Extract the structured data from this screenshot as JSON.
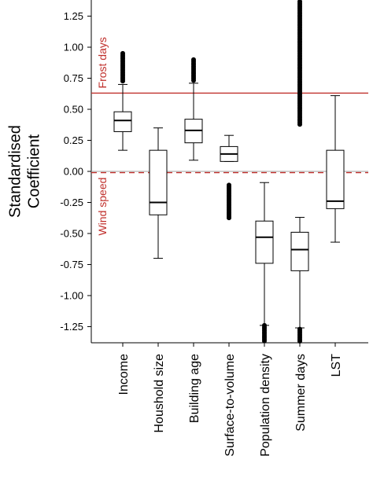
{
  "chart_data": {
    "type": "box",
    "ylabel": "Standardised\nCoefficient",
    "ylim": [
      -1.38,
      1.38
    ],
    "yticks": [
      1.25,
      1.0,
      0.75,
      0.5,
      0.25,
      0.0,
      -0.25,
      -0.5,
      -0.75,
      -1.0,
      -1.25
    ],
    "ytick_labels": [
      "1.25",
      "1.00",
      "0.75",
      "0.50",
      "0.25",
      "0.00",
      "-0.25",
      "-0.50",
      "-0.75",
      "-1.00",
      "-1.25"
    ],
    "grid": false,
    "categories": [
      "Income",
      "Houshold size",
      "Building age",
      "Surface-to-volume",
      "Population density",
      "Summer days",
      "LST"
    ],
    "boxes": [
      {
        "category": "Income",
        "whisker_low": 0.17,
        "q1": 0.32,
        "median": 0.41,
        "q3": 0.48,
        "whisker_high": 0.7,
        "outliers_range": [
          0.72,
          0.95
        ]
      },
      {
        "category": "Houshold size",
        "whisker_low": -0.7,
        "q1": -0.35,
        "median": -0.25,
        "q3": 0.17,
        "whisker_high": 0.35,
        "outliers_range": null
      },
      {
        "category": "Building age",
        "whisker_low": 0.09,
        "q1": 0.23,
        "median": 0.33,
        "q3": 0.42,
        "whisker_high": 0.71,
        "outliers_range": [
          0.73,
          0.9
        ]
      },
      {
        "category": "Surface-to-volume",
        "whisker_low": 0.08,
        "q1": 0.08,
        "median": 0.14,
        "q3": 0.2,
        "whisker_high": 0.29,
        "outliers_range": [
          -0.38,
          -0.11
        ]
      },
      {
        "category": "Population density",
        "whisker_low": -1.24,
        "q1": -0.74,
        "median": -0.53,
        "q3": -0.4,
        "whisker_high": -0.09,
        "outliers_range": [
          -1.38,
          -1.24
        ]
      },
      {
        "category": "Summer days",
        "whisker_low": -1.26,
        "q1": -0.8,
        "median": -0.63,
        "q3": -0.49,
        "whisker_high": -0.37,
        "outliers_range": [
          0.37,
          1.38
        ],
        "outliers_range_low": [
          -1.38,
          -1.27
        ]
      },
      {
        "category": "LST",
        "whisker_low": -0.57,
        "q1": -0.3,
        "median": -0.24,
        "q3": 0.17,
        "whisker_high": 0.61,
        "outliers_range": null
      }
    ],
    "reference_lines": [
      {
        "label": "Frost days",
        "value": 0.63,
        "style": "solid",
        "color": "#c0302c"
      },
      {
        "label": "Wind speed",
        "value": -0.01,
        "style": "dashed",
        "color": "#c0302c"
      }
    ],
    "zero_line": {
      "value": 0.0,
      "style": "solid",
      "color": "#a0a0a0"
    },
    "colors": {
      "box_stroke": "#000000",
      "box_fill": "#ffffff",
      "outlier": "#000000",
      "reference": "#c0302c"
    }
  }
}
